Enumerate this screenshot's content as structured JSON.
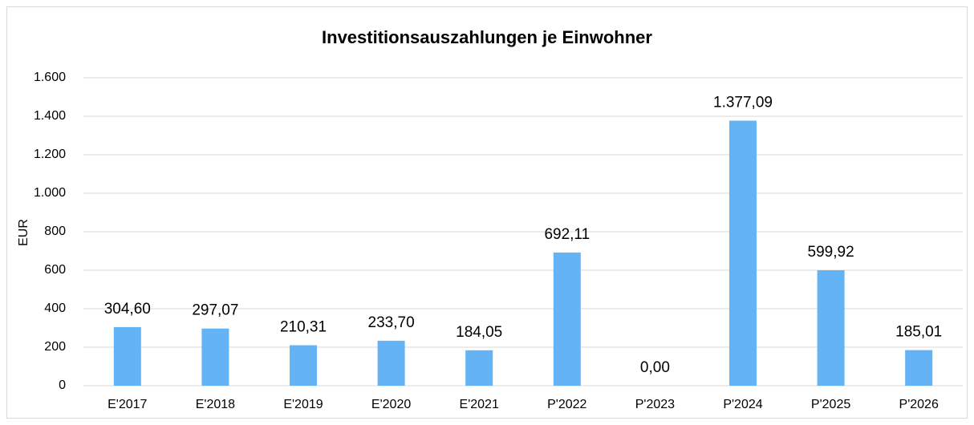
{
  "chart_data": {
    "type": "bar",
    "title": "Investitionsauszahlungen je Einwohner",
    "y_label": "EUR",
    "categories": [
      "E'2017",
      "E'2018",
      "E'2019",
      "E'2020",
      "E'2021",
      "P'2022",
      "P'2023",
      "P'2024",
      "P'2025",
      "P'2026"
    ],
    "values": [
      304.6,
      297.07,
      210.31,
      233.7,
      184.05,
      692.11,
      0.0,
      1377.09,
      599.92,
      185.01
    ],
    "value_labels": [
      "304,60",
      "297,07",
      "210,31",
      "233,70",
      "184,05",
      "692,11",
      "0,00",
      "1.377,09",
      "599,92",
      "185,01"
    ],
    "color": "#63b3f5",
    "ylim": [
      0,
      1600
    ],
    "yticks": [
      0,
      200,
      400,
      600,
      800,
      {
        "value": 1000,
        "label": "1.000"
      },
      {
        "value": 1200,
        "label": "1.200"
      },
      {
        "value": 1400,
        "label": "1.400"
      },
      {
        "value": 1600,
        "label": "1.600"
      }
    ],
    "grid": true
  }
}
